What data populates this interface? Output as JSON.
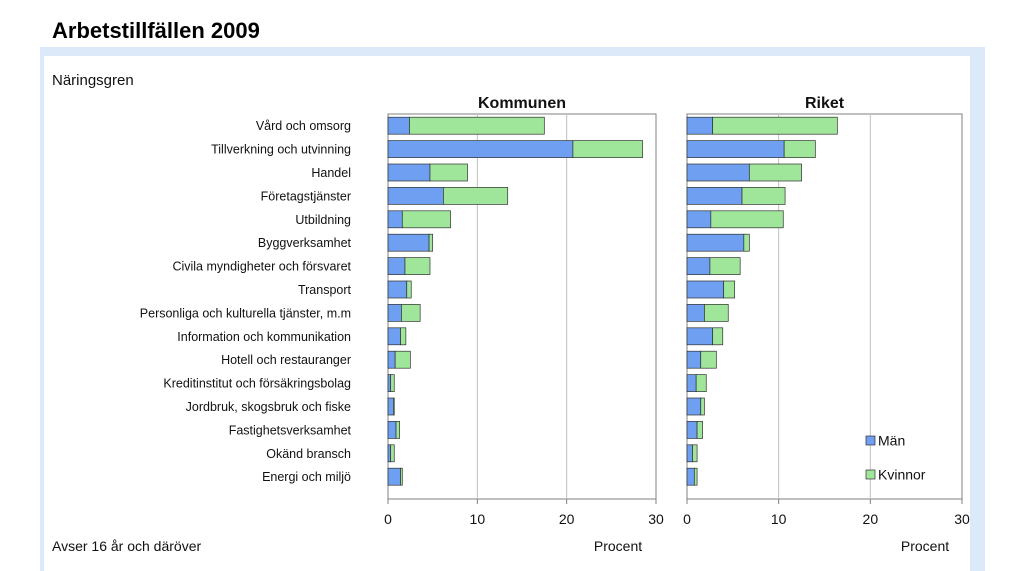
{
  "page": {
    "title": "Arbetstillfällen 2009",
    "category_header": "Näringsgren",
    "footnote": "Avser 16 år och däröver"
  },
  "colors": {
    "men": "#6f9ff0",
    "women": "#9fe69a",
    "gridline": "#c0c0c0",
    "panel_bg": "#dbe9f8"
  },
  "chart_data": [
    {
      "type": "bar",
      "orientation": "horizontal",
      "stacked": true,
      "title": "Kommunen",
      "xlabel": "Procent",
      "xlim": [
        0,
        30
      ],
      "xticks": [
        0,
        10,
        20,
        30
      ],
      "grid": true,
      "categories": [
        "Vård och omsorg",
        "Tillverkning och utvinning",
        "Handel",
        "Företagstjänster",
        "Utbildning",
        "Byggverksamhet",
        "Civila myndigheter och försvaret",
        "Transport",
        "Personliga och kulturella tjänster, m.m",
        "Information och kommunikation",
        "Hotell och restauranger",
        "Kreditinstitut och försäkringsbolag",
        "Jordbruk, skogsbruk och fiske",
        "Fastighetsverksamhet",
        "Okänd bransch",
        "Energi och miljö"
      ],
      "series": [
        {
          "name": "Män",
          "values": [
            2.4,
            20.7,
            4.7,
            6.2,
            1.6,
            4.6,
            1.9,
            2.1,
            1.5,
            1.4,
            0.8,
            0.3,
            0.6,
            0.9,
            0.3,
            1.4
          ]
        },
        {
          "name": "Kvinnor",
          "values": [
            15.1,
            7.8,
            4.2,
            7.2,
            5.4,
            0.4,
            2.8,
            0.5,
            2.1,
            0.6,
            1.7,
            0.4,
            0.1,
            0.4,
            0.4,
            0.2
          ]
        }
      ]
    },
    {
      "type": "bar",
      "orientation": "horizontal",
      "stacked": true,
      "title": "Riket",
      "xlabel": "Procent",
      "xlim": [
        0,
        30
      ],
      "xticks": [
        0,
        10,
        20,
        30
      ],
      "grid": true,
      "legend_position": "bottom-right",
      "categories": [
        "Vård och omsorg",
        "Tillverkning och utvinning",
        "Handel",
        "Företagstjänster",
        "Utbildning",
        "Byggverksamhet",
        "Civila myndigheter och försvaret",
        "Transport",
        "Personliga och kulturella tjänster, m.m",
        "Information och kommunikation",
        "Hotell och restauranger",
        "Kreditinstitut och försäkringsbolag",
        "Jordbruk, skogsbruk och fiske",
        "Fastighetsverksamhet",
        "Okänd bransch",
        "Energi och miljö"
      ],
      "series": [
        {
          "name": "Män",
          "values": [
            2.8,
            10.6,
            6.8,
            6.0,
            2.6,
            6.2,
            2.5,
            4.0,
            1.9,
            2.8,
            1.5,
            1.0,
            1.5,
            1.1,
            0.6,
            0.8
          ]
        },
        {
          "name": "Kvinnor",
          "values": [
            13.6,
            3.4,
            5.7,
            4.7,
            7.9,
            0.6,
            3.3,
            1.2,
            2.6,
            1.1,
            1.7,
            1.1,
            0.4,
            0.6,
            0.5,
            0.3
          ]
        }
      ]
    }
  ]
}
